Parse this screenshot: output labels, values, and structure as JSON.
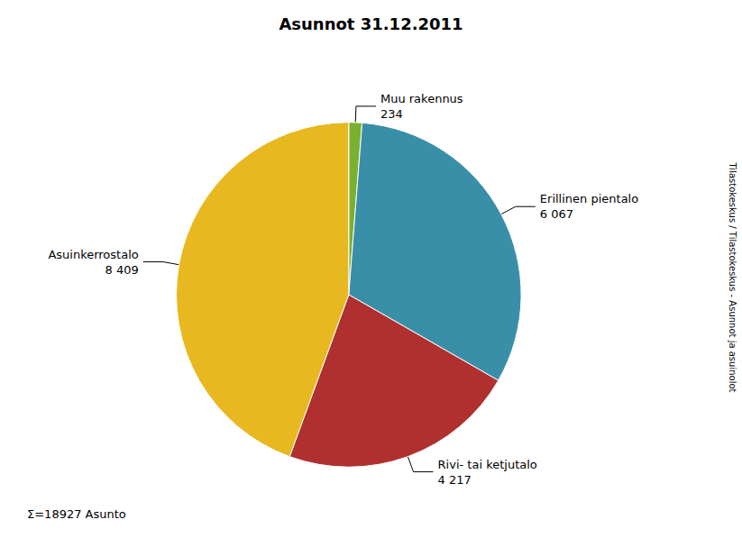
{
  "chart_data": {
    "type": "pie",
    "title": "Asunnot 31.12.2011",
    "categories": [
      "Muu rakennus",
      "Erillinen pientalo",
      "Rivi- tai ketjutalo",
      "Asuinkerrostalo"
    ],
    "values": [
      234,
      6067,
      4217,
      8409
    ],
    "value_labels": [
      "234",
      "6 067",
      "4 217",
      "8 409"
    ],
    "colors": [
      "#7ab030",
      "#3a8fa8",
      "#b03030",
      "#e8b820"
    ],
    "data_labels": true,
    "legend": false,
    "annotations": [
      "Σ=18927 Asunto",
      "Tilastokeskus / Tilastokeskus - Asunnot ja asuinolot"
    ]
  }
}
